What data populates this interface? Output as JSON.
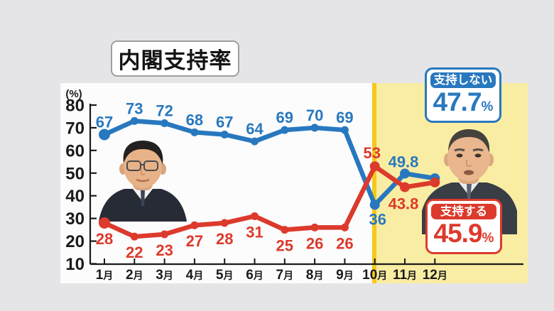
{
  "title": "内閣支持率",
  "badges": {
    "disapprove": {
      "label": "支持しない",
      "value": "47.7",
      "unit": "%"
    },
    "approve": {
      "label": "支持する",
      "value": "45.9",
      "unit": "%"
    }
  },
  "colors": {
    "disapprove_blue": "#2878bf",
    "approve_red": "#dc3a2c",
    "highlight_yellow": "#f9eda3",
    "highlight_edge_gold": "#f6c81c",
    "panel_white": "#fcfcfc",
    "background_gray": "#e5e5e7",
    "axis_black": "#1a1a1a"
  },
  "chart_data": {
    "type": "line",
    "title": "内閣支持率",
    "ylabel": "(%)",
    "ylim": [
      10,
      80
    ],
    "yticks": [
      10,
      20,
      30,
      40,
      50,
      60,
      70,
      80
    ],
    "grid": false,
    "categories": [
      "1月",
      "2月",
      "3月",
      "4月",
      "5月",
      "6月",
      "7月",
      "8月",
      "9月",
      "10月",
      "11月",
      "12月"
    ],
    "series": [
      {
        "name": "支持しない",
        "color": "#2878bf",
        "values": [
          67,
          73,
          72,
          68,
          67,
          64,
          69,
          70,
          69,
          36,
          49.8,
          47.7
        ]
      },
      {
        "name": "支持する",
        "color": "#dc3a2c",
        "values": [
          28,
          22,
          23,
          27,
          28,
          31,
          25,
          26,
          26,
          53,
          43.8,
          45.9
        ]
      }
    ],
    "point_labels": "all values labeled on chart except December, whose values appear in the badges",
    "highlight_region": {
      "from": "10月",
      "to": "12月",
      "color": "#f9eda3"
    }
  }
}
